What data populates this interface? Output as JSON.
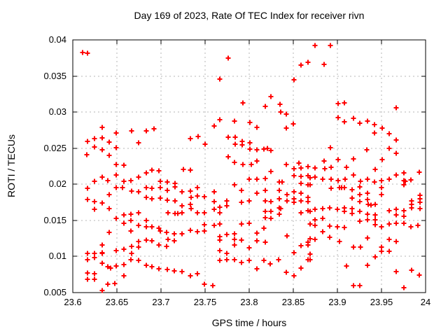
{
  "chart_data": {
    "type": "scatter",
    "title": "Day 169 of 2023, Rate Of TEC Index for receiver rivn",
    "xlabel": "GPS time / hours",
    "ylabel": "ROTI / TECUs",
    "xlim": [
      23.6,
      24
    ],
    "ylim": [
      0.005,
      0.04
    ],
    "xticks": [
      23.6,
      23.65,
      23.7,
      23.75,
      23.8,
      23.85,
      23.9,
      23.95,
      24
    ],
    "xtick_labels": [
      "23.6",
      "23.65",
      "23.7",
      "23.75",
      "23.8",
      "23.85",
      "23.9",
      "23.95",
      "24"
    ],
    "yticks": [
      0.005,
      0.01,
      0.015,
      0.02,
      0.025,
      0.03,
      0.035,
      0.04
    ],
    "ytick_labels": [
      "0.005",
      "0.01",
      "0.015",
      "0.02",
      "0.025",
      "0.03",
      "0.035",
      "0.04"
    ],
    "grid": true,
    "legend_position": "none",
    "marker": "plus",
    "marker_color": "#ff0000",
    "grid_color": "#b4b4b4",
    "axis_color": "#000000",
    "points": [
      [
        23.611,
        0.0383
      ],
      [
        23.617,
        0.0382
      ],
      [
        23.633,
        0.0279
      ],
      [
        23.649,
        0.0271
      ],
      [
        23.667,
        0.0274
      ],
      [
        23.683,
        0.0274
      ],
      [
        23.692,
        0.0277
      ],
      [
        23.617,
        0.0259
      ],
      [
        23.625,
        0.0263
      ],
      [
        23.633,
        0.0264
      ],
      [
        23.641,
        0.0258
      ],
      [
        23.625,
        0.0252
      ],
      [
        23.633,
        0.0248
      ],
      [
        23.649,
        0.0251
      ],
      [
        23.675,
        0.0257
      ],
      [
        23.616,
        0.0241
      ],
      [
        23.641,
        0.024
      ],
      [
        23.649,
        0.0227
      ],
      [
        23.658,
        0.0226
      ],
      [
        23.733,
        0.0263
      ],
      [
        23.776,
        0.0375
      ],
      [
        23.859,
        0.0365
      ],
      [
        23.867,
        0.0369
      ],
      [
        23.767,
        0.0346
      ],
      [
        23.851,
        0.0345
      ],
      [
        23.825,
        0.0321
      ],
      [
        23.793,
        0.0313
      ],
      [
        23.835,
        0.0311
      ],
      [
        23.818,
        0.0308
      ],
      [
        23.836,
        0.03
      ],
      [
        23.842,
        0.0297
      ],
      [
        23.767,
        0.0289
      ],
      [
        23.783,
        0.0288
      ],
      [
        23.801,
        0.0286
      ],
      [
        23.76,
        0.0281
      ],
      [
        23.809,
        0.0279
      ],
      [
        23.85,
        0.0284
      ],
      [
        23.842,
        0.0278
      ],
      [
        23.742,
        0.0266
      ],
      [
        23.75,
        0.0256
      ],
      [
        23.776,
        0.0265
      ],
      [
        23.784,
        0.0265
      ],
      [
        23.784,
        0.0256
      ],
      [
        23.792,
        0.0259
      ],
      [
        23.792,
        0.0255
      ],
      [
        23.801,
        0.0257
      ],
      [
        23.801,
        0.0249
      ],
      [
        23.809,
        0.0248
      ],
      [
        23.817,
        0.0249
      ],
      [
        23.821,
        0.025
      ],
      [
        23.825,
        0.0247
      ],
      [
        23.776,
        0.0238
      ],
      [
        23.783,
        0.023
      ],
      [
        23.793,
        0.0227
      ],
      [
        23.802,
        0.0227
      ],
      [
        23.809,
        0.0232
      ],
      [
        23.842,
        0.0227
      ],
      [
        23.856,
        0.0229
      ],
      [
        23.875,
        0.0392
      ],
      [
        23.892,
        0.0392
      ],
      [
        23.885,
        0.0366
      ],
      [
        23.901,
        0.0312
      ],
      [
        23.908,
        0.0313
      ],
      [
        23.901,
        0.0292
      ],
      [
        23.908,
        0.0287
      ],
      [
        23.918,
        0.0291
      ],
      [
        23.925,
        0.0285
      ],
      [
        23.934,
        0.0288
      ],
      [
        23.942,
        0.0283
      ],
      [
        23.942,
        0.0271
      ],
      [
        23.951,
        0.0278
      ],
      [
        23.959,
        0.027
      ],
      [
        23.967,
        0.0306
      ],
      [
        23.967,
        0.0261
      ],
      [
        23.892,
        0.0251
      ],
      [
        23.959,
        0.025
      ],
      [
        23.933,
        0.0248
      ],
      [
        23.967,
        0.0243
      ],
      [
        23.885,
        0.0232
      ],
      [
        23.901,
        0.0234
      ],
      [
        23.918,
        0.0235
      ],
      [
        23.951,
        0.0234
      ],
      [
        23.69,
        0.022
      ],
      [
        23.698,
        0.0219
      ],
      [
        23.725,
        0.0221
      ],
      [
        23.733,
        0.022
      ],
      [
        23.649,
        0.0213
      ],
      [
        23.675,
        0.021
      ],
      [
        23.683,
        0.0216
      ],
      [
        23.633,
        0.021
      ],
      [
        23.64,
        0.0205
      ],
      [
        23.625,
        0.0204
      ],
      [
        23.658,
        0.0204
      ],
      [
        23.666,
        0.0205
      ],
      [
        23.699,
        0.0204
      ],
      [
        23.707,
        0.0203
      ],
      [
        23.716,
        0.0201
      ],
      [
        23.617,
        0.0194
      ],
      [
        23.649,
        0.0195
      ],
      [
        23.656,
        0.0195
      ],
      [
        23.667,
        0.0191
      ],
      [
        23.675,
        0.019
      ],
      [
        23.683,
        0.0195
      ],
      [
        23.69,
        0.0194
      ],
      [
        23.699,
        0.0195
      ],
      [
        23.707,
        0.0192
      ],
      [
        23.716,
        0.0196
      ],
      [
        23.724,
        0.019
      ],
      [
        23.733,
        0.0191
      ],
      [
        23.641,
        0.0186
      ],
      [
        23.683,
        0.0182
      ],
      [
        23.69,
        0.018
      ],
      [
        23.699,
        0.0181
      ],
      [
        23.707,
        0.0178
      ],
      [
        23.716,
        0.0177
      ],
      [
        23.617,
        0.0179
      ],
      [
        23.625,
        0.0176
      ],
      [
        23.633,
        0.0174
      ],
      [
        23.625,
        0.0165
      ],
      [
        23.641,
        0.0166
      ],
      [
        23.708,
        0.0161
      ],
      [
        23.716,
        0.016
      ],
      [
        23.719,
        0.016
      ],
      [
        23.724,
        0.017
      ],
      [
        23.733,
        0.0172
      ],
      [
        23.724,
        0.0161
      ],
      [
        23.658,
        0.0158
      ],
      [
        23.666,
        0.0159
      ],
      [
        23.675,
        0.0161
      ],
      [
        23.649,
        0.0153
      ],
      [
        23.658,
        0.0146
      ],
      [
        23.666,
        0.015
      ],
      [
        23.675,
        0.0143
      ],
      [
        23.683,
        0.015
      ],
      [
        23.683,
        0.0141
      ],
      [
        23.69,
        0.0141
      ],
      [
        23.698,
        0.0139
      ],
      [
        23.641,
        0.0133
      ],
      [
        23.666,
        0.0135
      ],
      [
        23.699,
        0.0135
      ],
      [
        23.706,
        0.0133
      ],
      [
        23.715,
        0.0131
      ],
      [
        23.724,
        0.0131
      ],
      [
        23.733,
        0.0136
      ],
      [
        23.708,
        0.0124
      ],
      [
        23.715,
        0.0122
      ],
      [
        23.633,
        0.0116
      ],
      [
        23.675,
        0.0121
      ],
      [
        23.683,
        0.0123
      ],
      [
        23.69,
        0.0122
      ],
      [
        23.698,
        0.0116
      ],
      [
        23.706,
        0.0114
      ],
      [
        23.633,
        0.0105
      ],
      [
        23.649,
        0.0108
      ],
      [
        23.658,
        0.011
      ],
      [
        23.667,
        0.0114
      ],
      [
        23.675,
        0.0113
      ],
      [
        23.617,
        0.0104
      ],
      [
        23.625,
        0.0104
      ],
      [
        23.633,
        0.0104
      ],
      [
        23.667,
        0.0104
      ],
      [
        23.617,
        0.0096
      ],
      [
        23.625,
        0.0098
      ],
      [
        23.666,
        0.0096
      ],
      [
        23.675,
        0.0095
      ],
      [
        23.633,
        0.0091
      ],
      [
        23.64,
        0.0086
      ],
      [
        23.643,
        0.0084
      ],
      [
        23.649,
        0.0087
      ],
      [
        23.658,
        0.0089
      ],
      [
        23.683,
        0.0088
      ],
      [
        23.69,
        0.0086
      ],
      [
        23.698,
        0.0083
      ],
      [
        23.707,
        0.0082
      ],
      [
        23.715,
        0.008
      ],
      [
        23.724,
        0.0079
      ],
      [
        23.733,
        0.0073
      ],
      [
        23.617,
        0.0077
      ],
      [
        23.625,
        0.0076
      ],
      [
        23.658,
        0.0073
      ],
      [
        23.617,
        0.0068
      ],
      [
        23.625,
        0.0068
      ],
      [
        23.64,
        0.0062
      ],
      [
        23.648,
        0.0063
      ],
      [
        23.633,
        0.0053
      ],
      [
        23.825,
        0.0218
      ],
      [
        23.851,
        0.0222
      ],
      [
        23.859,
        0.0223
      ],
      [
        23.867,
        0.0225
      ],
      [
        23.8,
        0.0207
      ],
      [
        23.809,
        0.0207
      ],
      [
        23.818,
        0.0208
      ],
      [
        23.851,
        0.0212
      ],
      [
        23.859,
        0.0211
      ],
      [
        23.867,
        0.0212
      ],
      [
        23.834,
        0.0203
      ],
      [
        23.837,
        0.0203
      ],
      [
        23.859,
        0.0201
      ],
      [
        23.867,
        0.0199
      ],
      [
        23.741,
        0.0195
      ],
      [
        23.76,
        0.019
      ],
      [
        23.783,
        0.0199
      ],
      [
        23.791,
        0.0192
      ],
      [
        23.809,
        0.0188
      ],
      [
        23.818,
        0.0192
      ],
      [
        23.834,
        0.0192
      ],
      [
        23.843,
        0.0186
      ],
      [
        23.851,
        0.019
      ],
      [
        23.859,
        0.0188
      ],
      [
        23.867,
        0.0182
      ],
      [
        23.734,
        0.0182
      ],
      [
        23.741,
        0.0184
      ],
      [
        23.749,
        0.0183
      ],
      [
        23.76,
        0.0176
      ],
      [
        23.767,
        0.0168
      ],
      [
        23.775,
        0.0177
      ],
      [
        23.791,
        0.0175
      ],
      [
        23.8,
        0.0177
      ],
      [
        23.818,
        0.0177
      ],
      [
        23.825,
        0.0176
      ],
      [
        23.834,
        0.018
      ],
      [
        23.843,
        0.0177
      ],
      [
        23.851,
        0.018
      ],
      [
        23.851,
        0.0175
      ],
      [
        23.859,
        0.0177
      ],
      [
        23.867,
        0.0176
      ],
      [
        23.734,
        0.0166
      ],
      [
        23.741,
        0.0161
      ],
      [
        23.749,
        0.0161
      ],
      [
        23.76,
        0.0165
      ],
      [
        23.767,
        0.0161
      ],
      [
        23.775,
        0.017
      ],
      [
        23.818,
        0.0162
      ],
      [
        23.825,
        0.0162
      ],
      [
        23.834,
        0.0167
      ],
      [
        23.836,
        0.0166
      ],
      [
        23.834,
        0.0159
      ],
      [
        23.859,
        0.0161
      ],
      [
        23.867,
        0.0163
      ],
      [
        23.818,
        0.0154
      ],
      [
        23.825,
        0.0153
      ],
      [
        23.749,
        0.0144
      ],
      [
        23.76,
        0.0143
      ],
      [
        23.767,
        0.0145
      ],
      [
        23.741,
        0.0134
      ],
      [
        23.749,
        0.0135
      ],
      [
        23.791,
        0.0145
      ],
      [
        23.8,
        0.0146
      ],
      [
        23.817,
        0.0139
      ],
      [
        23.809,
        0.0132
      ],
      [
        23.767,
        0.0128
      ],
      [
        23.775,
        0.013
      ],
      [
        23.783,
        0.0131
      ],
      [
        23.767,
        0.0123
      ],
      [
        23.783,
        0.0124
      ],
      [
        23.791,
        0.0123
      ],
      [
        23.783,
        0.0116
      ],
      [
        23.809,
        0.0122
      ],
      [
        23.818,
        0.012
      ],
      [
        23.843,
        0.0129
      ],
      [
        23.859,
        0.0115
      ],
      [
        23.867,
        0.012
      ],
      [
        23.867,
        0.0116
      ],
      [
        23.8,
        0.0112
      ],
      [
        23.767,
        0.0108
      ],
      [
        23.775,
        0.0104
      ],
      [
        23.851,
        0.0105
      ],
      [
        23.775,
        0.0096
      ],
      [
        23.783,
        0.0096
      ],
      [
        23.767,
        0.0095
      ],
      [
        23.791,
        0.0092
      ],
      [
        23.8,
        0.0095
      ],
      [
        23.817,
        0.0095
      ],
      [
        23.824,
        0.009
      ],
      [
        23.833,
        0.0096
      ],
      [
        23.867,
        0.0096
      ],
      [
        23.809,
        0.0083
      ],
      [
        23.859,
        0.0084
      ],
      [
        23.842,
        0.0078
      ],
      [
        23.851,
        0.0073
      ],
      [
        23.741,
        0.0076
      ],
      [
        23.749,
        0.0062
      ],
      [
        23.759,
        0.006
      ],
      [
        23.875,
        0.0223
      ],
      [
        23.886,
        0.0222
      ],
      [
        23.893,
        0.0224
      ],
      [
        23.91,
        0.0224
      ],
      [
        23.943,
        0.0221
      ],
      [
        23.993,
        0.0217
      ],
      [
        23.875,
        0.021
      ],
      [
        23.883,
        0.0207
      ],
      [
        23.893,
        0.0207
      ],
      [
        23.901,
        0.0205
      ],
      [
        23.909,
        0.0207
      ],
      [
        23.918,
        0.0213
      ],
      [
        23.926,
        0.0204
      ],
      [
        23.934,
        0.0207
      ],
      [
        23.942,
        0.0203
      ],
      [
        23.95,
        0.0205
      ],
      [
        23.959,
        0.0207
      ],
      [
        23.967,
        0.0213
      ],
      [
        23.975,
        0.0216
      ],
      [
        23.975,
        0.0205
      ],
      [
        23.977,
        0.0204
      ],
      [
        23.983,
        0.0206
      ],
      [
        23.869,
        0.0209
      ],
      [
        23.869,
        0.0199
      ],
      [
        23.893,
        0.0194
      ],
      [
        23.902,
        0.0195
      ],
      [
        23.905,
        0.0195
      ],
      [
        23.908,
        0.0195
      ],
      [
        23.917,
        0.0193
      ],
      [
        23.925,
        0.0196
      ],
      [
        23.975,
        0.0199
      ],
      [
        23.95,
        0.0195
      ],
      [
        23.95,
        0.0186
      ],
      [
        23.934,
        0.0188
      ],
      [
        23.925,
        0.0186
      ],
      [
        23.917,
        0.0181
      ],
      [
        23.934,
        0.0179
      ],
      [
        23.925,
        0.0176
      ],
      [
        23.935,
        0.0172
      ],
      [
        23.938,
        0.0171
      ],
      [
        23.943,
        0.0172
      ],
      [
        23.994,
        0.0185
      ],
      [
        23.994,
        0.018
      ],
      [
        23.994,
        0.0175
      ],
      [
        23.984,
        0.0177
      ],
      [
        23.984,
        0.0172
      ],
      [
        23.994,
        0.0166
      ],
      [
        23.984,
        0.0167
      ],
      [
        23.869,
        0.0162
      ],
      [
        23.875,
        0.0165
      ],
      [
        23.883,
        0.0166
      ],
      [
        23.891,
        0.0167
      ],
      [
        23.9,
        0.0165
      ],
      [
        23.908,
        0.0167
      ],
      [
        23.908,
        0.0162
      ],
      [
        23.917,
        0.0166
      ],
      [
        23.917,
        0.016
      ],
      [
        23.925,
        0.0162
      ],
      [
        23.934,
        0.0159
      ],
      [
        23.943,
        0.0158
      ],
      [
        23.959,
        0.0163
      ],
      [
        23.967,
        0.0165
      ],
      [
        23.975,
        0.0163
      ],
      [
        23.967,
        0.0158
      ],
      [
        23.975,
        0.0156
      ],
      [
        23.875,
        0.0151
      ],
      [
        23.883,
        0.0153
      ],
      [
        23.925,
        0.0149
      ],
      [
        23.934,
        0.0151
      ],
      [
        23.943,
        0.0151
      ],
      [
        23.943,
        0.0144
      ],
      [
        23.95,
        0.0141
      ],
      [
        23.959,
        0.0145
      ],
      [
        23.967,
        0.0146
      ],
      [
        23.975,
        0.0146
      ],
      [
        23.869,
        0.0145
      ],
      [
        23.875,
        0.0143
      ],
      [
        23.891,
        0.0142
      ],
      [
        23.9,
        0.0141
      ],
      [
        23.908,
        0.014
      ],
      [
        23.983,
        0.0141
      ],
      [
        23.991,
        0.0143
      ],
      [
        23.883,
        0.0134
      ],
      [
        23.891,
        0.0127
      ],
      [
        23.875,
        0.0124
      ],
      [
        23.869,
        0.0125
      ],
      [
        23.934,
        0.0126
      ],
      [
        23.902,
        0.0121
      ],
      [
        23.959,
        0.0124
      ],
      [
        23.967,
        0.0121
      ],
      [
        23.918,
        0.0113
      ],
      [
        23.926,
        0.0113
      ],
      [
        23.95,
        0.0113
      ],
      [
        23.95,
        0.0107
      ],
      [
        23.959,
        0.0107
      ],
      [
        23.869,
        0.0103
      ],
      [
        23.943,
        0.0099
      ],
      [
        23.869,
        0.0096
      ],
      [
        23.91,
        0.0087
      ],
      [
        23.934,
        0.0088
      ],
      [
        23.967,
        0.0079
      ],
      [
        23.984,
        0.0081
      ],
      [
        23.993,
        0.0074
      ],
      [
        23.918,
        0.006
      ],
      [
        23.925,
        0.006
      ],
      [
        23.975,
        0.0057
      ]
    ]
  }
}
